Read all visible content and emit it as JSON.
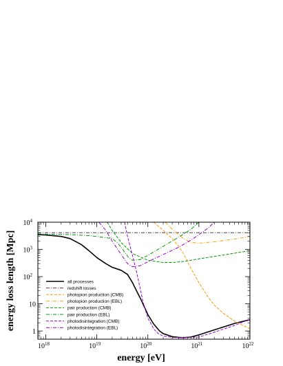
{
  "chart_data": {
    "type": "line",
    "xlabel": "energy [eV]",
    "ylabel": "energy loss length [Mpc]",
    "x_scale": "log",
    "y_scale": "log",
    "xlim": [
      7e+17,
      1e+22
    ],
    "ylim": [
      0.5,
      10000
    ],
    "x_ticks": [
      {
        "value": 1e+18,
        "label": "10",
        "exp": "18"
      },
      {
        "value": 1e+19,
        "label": "10",
        "exp": "19"
      },
      {
        "value": 1e+20,
        "label": "10",
        "exp": "20"
      },
      {
        "value": 1e+21,
        "label": "10",
        "exp": "21"
      },
      {
        "value": 1e+22,
        "label": "10",
        "exp": "22"
      }
    ],
    "y_ticks": [
      {
        "value": 1,
        "label": "1",
        "exp": ""
      },
      {
        "value": 10,
        "label": "10",
        "exp": ""
      },
      {
        "value": 100,
        "label": "10",
        "exp": "2"
      },
      {
        "value": 1000,
        "label": "10",
        "exp": "3"
      },
      {
        "value": 10000,
        "label": "10",
        "exp": "4"
      }
    ],
    "grid": false,
    "legend_position": "lower-left",
    "series": [
      {
        "name": "all processes",
        "color": "#000000",
        "dash": "",
        "width": 1.6,
        "points": [
          [
            7e+17,
            3500
          ],
          [
            1e+18,
            3400
          ],
          [
            2e+18,
            3000
          ],
          [
            3e+18,
            2500
          ],
          [
            5e+18,
            1500
          ],
          [
            7e+18,
            900
          ],
          [
            1e+19,
            500
          ],
          [
            1.5e+19,
            300
          ],
          [
            2e+19,
            220
          ],
          [
            3e+19,
            170
          ],
          [
            4e+19,
            120
          ],
          [
            5e+19,
            60
          ],
          [
            6e+19,
            30
          ],
          [
            7e+19,
            17
          ],
          [
            8e+19,
            10
          ],
          [
            1e+20,
            4
          ],
          [
            1.3e+20,
            1.8
          ],
          [
            1.7e+20,
            1.0
          ],
          [
            2e+20,
            0.8
          ],
          [
            3e+20,
            0.62
          ],
          [
            4e+20,
            0.58
          ],
          [
            5e+20,
            0.57
          ],
          [
            7e+20,
            0.6
          ],
          [
            1e+21,
            0.72
          ],
          [
            2e+21,
            1.1
          ],
          [
            3e+21,
            1.4
          ],
          [
            5e+21,
            1.9
          ],
          [
            1e+22,
            2.6
          ]
        ]
      },
      {
        "name": "redshift losses",
        "color": "#444444",
        "dash": "5,2,1,2",
        "width": 1.0,
        "points": [
          [
            7e+17,
            4100
          ],
          [
            1e+22,
            4100
          ]
        ]
      },
      {
        "name": "photopion production (CMB)",
        "color": "#ff9900",
        "dash": "4,2",
        "width": 1.0,
        "points": [
          [
            1.3e+20,
            10000
          ],
          [
            2e+20,
            5000
          ],
          [
            3e+20,
            2500
          ],
          [
            4e+20,
            1300
          ],
          [
            5e+20,
            700
          ],
          [
            7e+20,
            200
          ],
          [
            1e+21,
            60
          ],
          [
            1.5e+21,
            18
          ],
          [
            2e+21,
            9
          ],
          [
            3e+21,
            4.5
          ],
          [
            5e+21,
            2.3
          ],
          [
            1e+22,
            1.2
          ]
        ]
      },
      {
        "name": "photopion production (EBL)",
        "color": "#ff9900",
        "dash": "5,2,1,2",
        "width": 1.0,
        "points": [
          [
            2.2e+20,
            10000
          ],
          [
            3e+20,
            5500
          ],
          [
            5e+20,
            2500
          ],
          [
            7e+20,
            1800
          ],
          [
            1e+21,
            1700
          ],
          [
            2e+21,
            1900
          ],
          [
            5e+21,
            2400
          ],
          [
            1e+22,
            3000
          ]
        ]
      },
      {
        "name": "pair production (CMB)",
        "color": "#009900",
        "dash": "4,2",
        "width": 1.0,
        "points": [
          [
            1.6e+19,
            10000
          ],
          [
            2e+19,
            5000
          ],
          [
            3e+19,
            1800
          ],
          [
            5e+19,
            700
          ],
          [
            1e+20,
            400
          ],
          [
            2e+20,
            330
          ],
          [
            3e+20,
            330
          ],
          [
            5e+20,
            360
          ],
          [
            1e+21,
            450
          ],
          [
            3e+21,
            620
          ],
          [
            1e+22,
            900
          ]
        ]
      },
      {
        "name": "pair production (EBL)",
        "color": "#009900",
        "dash": "5,2,1,2",
        "width": 1.0,
        "points": [
          [
            7e+17,
            3700
          ],
          [
            1e+18,
            3650
          ],
          [
            3e+18,
            3500
          ],
          [
            7e+18,
            3200
          ],
          [
            1e+19,
            3000
          ],
          [
            2e+19,
            2500
          ],
          [
            2.5e+19,
            1800
          ],
          [
            3e+19,
            1200
          ],
          [
            3.5e+19,
            800
          ],
          [
            4.2e+19,
            500
          ],
          [
            5e+19,
            400
          ],
          [
            7e+19,
            420
          ],
          [
            1e+20,
            600
          ],
          [
            2e+20,
            1300
          ],
          [
            4e+20,
            2800
          ],
          [
            7e+20,
            5500
          ],
          [
            1e+21,
            10000
          ]
        ]
      },
      {
        "name": "photodisintegration (CMB)",
        "color": "#9900cc",
        "dash": "4,2",
        "width": 1.0,
        "points": [
          [
            3.5e+19,
            10000
          ],
          [
            4e+19,
            3000
          ],
          [
            5e+19,
            600
          ],
          [
            6e+19,
            150
          ],
          [
            7e+19,
            40
          ],
          [
            8e+19,
            12
          ],
          [
            1e+20,
            3
          ],
          [
            1.3e+20,
            1.2
          ],
          [
            1.6e+20,
            0.8
          ],
          [
            2e+20,
            0.65
          ],
          [
            3e+20,
            0.58
          ],
          [
            5e+20,
            0.57
          ],
          [
            1e+21,
            0.6
          ],
          [
            2e+21,
            0.9
          ],
          [
            5e+21,
            1.6
          ],
          [
            1e+22,
            2.7
          ]
        ]
      },
      {
        "name": "photodisintegration (EBL)",
        "color": "#9900cc",
        "dash": "5,2,1,2",
        "width": 1.0,
        "points": [
          [
            1.1e+19,
            10000
          ],
          [
            1.5e+19,
            5000
          ],
          [
            2e+19,
            2000
          ],
          [
            3e+19,
            650
          ],
          [
            4e+19,
            300
          ],
          [
            5e+19,
            230
          ],
          [
            7e+19,
            250
          ],
          [
            1e+20,
            350
          ],
          [
            2e+20,
            650
          ],
          [
            4e+20,
            1200
          ],
          [
            7e+20,
            2200
          ],
          [
            1e+21,
            3500
          ],
          [
            1.5e+21,
            6000
          ],
          [
            2e+21,
            10000
          ]
        ]
      }
    ]
  }
}
